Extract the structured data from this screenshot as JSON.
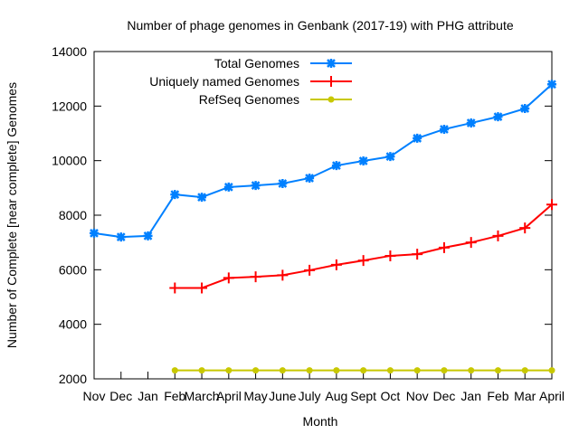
{
  "chart_data": {
    "type": "line",
    "title": "Number of phage genomes in Genbank (2017-19) with PHG attribute",
    "xlabel": "Month",
    "ylabel": "Number of Complete [near complete] Genomes",
    "ylim": [
      2000,
      14000
    ],
    "yticks": [
      2000,
      4000,
      6000,
      8000,
      10000,
      12000,
      14000
    ],
    "categories": [
      "Nov",
      "Dec",
      "Jan",
      "Feb",
      "March",
      "April",
      "May",
      "June",
      "July",
      "Aug",
      "Sept",
      "Oct",
      "Nov",
      "Dec",
      "Jan",
      "Feb",
      "Mar",
      "April"
    ],
    "legend_position": "top-center",
    "series": [
      {
        "name": "Total Genomes",
        "color": "#0080ff",
        "marker": "star",
        "values": [
          7340,
          7200,
          7240,
          8760,
          8660,
          9030,
          9090,
          9160,
          9360,
          9820,
          9990,
          10150,
          10820,
          11150,
          11380,
          11610,
          11910,
          12800
        ]
      },
      {
        "name": "Uniquely named Genomes",
        "color": "#ff0000",
        "marker": "plus",
        "values": [
          null,
          null,
          null,
          5330,
          5330,
          5700,
          5740,
          5800,
          5980,
          6180,
          6340,
          6510,
          6570,
          6810,
          7000,
          7240,
          7530,
          8390
        ]
      },
      {
        "name": "RefSeq Genomes",
        "color": "#c8c800",
        "marker": "dot",
        "values": [
          null,
          null,
          null,
          2310,
          2310,
          2310,
          2310,
          2310,
          2310,
          2310,
          2310,
          2310,
          2310,
          2310,
          2310,
          2310,
          2310,
          2310
        ]
      }
    ]
  }
}
